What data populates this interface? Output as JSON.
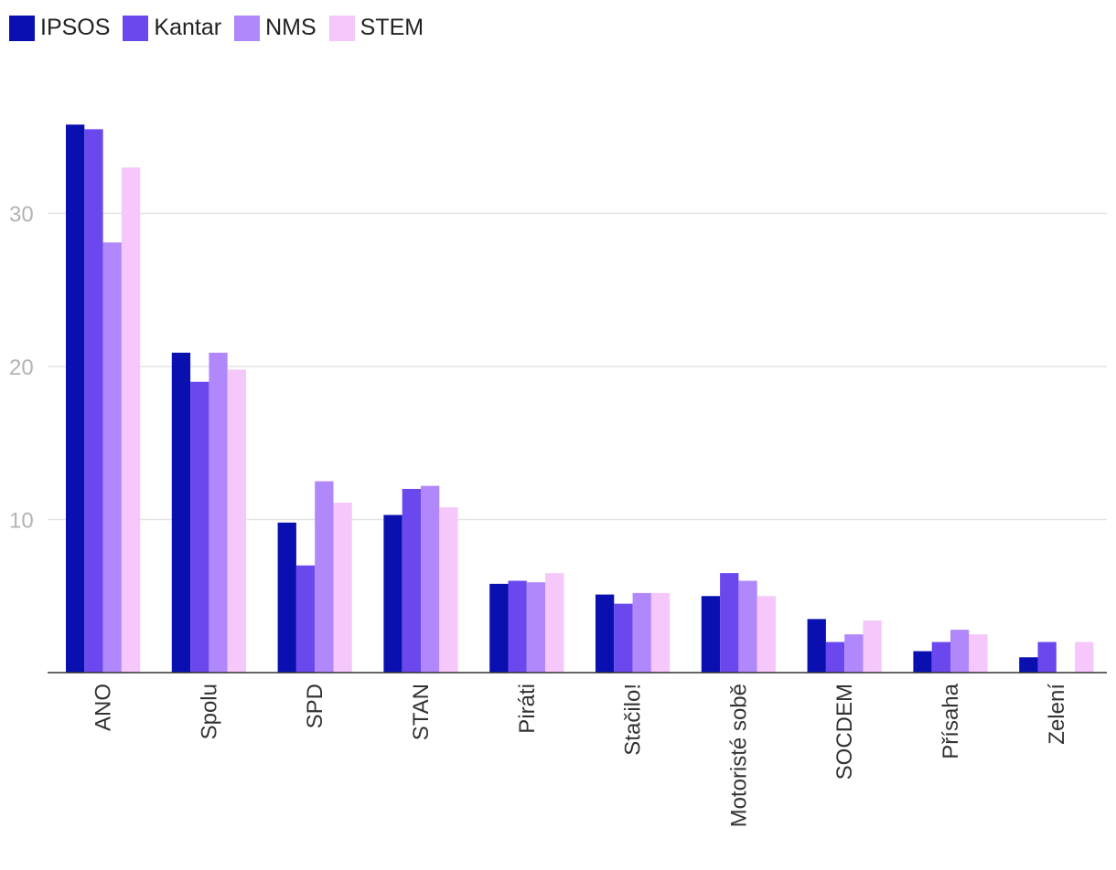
{
  "chart_data": {
    "type": "bar",
    "categories": [
      "ANO",
      "Spolu",
      "SPD",
      "STAN",
      "Piráti",
      "Stačilo!",
      "Motoristé sobě",
      "SOCDEM",
      "Přísaha",
      "Zelení"
    ],
    "series": [
      {
        "name": "IPSOS",
        "color": "#0a10b0",
        "values": [
          35.8,
          20.9,
          9.8,
          10.3,
          5.8,
          5.1,
          5.0,
          3.5,
          1.4,
          1.0
        ]
      },
      {
        "name": "Kantar",
        "color": "#6b48ee",
        "values": [
          35.5,
          19.0,
          7.0,
          12.0,
          6.0,
          4.5,
          6.5,
          2.0,
          2.0,
          2.0
        ]
      },
      {
        "name": "NMS",
        "color": "#b088fb",
        "values": [
          28.1,
          20.9,
          12.5,
          12.2,
          5.9,
          5.2,
          6.0,
          2.5,
          2.8,
          null
        ]
      },
      {
        "name": "STEM",
        "color": "#f5c7fb",
        "values": [
          33.0,
          19.8,
          11.1,
          10.8,
          6.5,
          5.2,
          5.0,
          3.4,
          2.5,
          2.0
        ]
      }
    ],
    "y_ticks": [
      10,
      20,
      30
    ],
    "ylim": [
      0,
      36
    ],
    "grid": true,
    "legend_position": "top-left",
    "xlabel": "",
    "ylabel": "",
    "title": ""
  }
}
